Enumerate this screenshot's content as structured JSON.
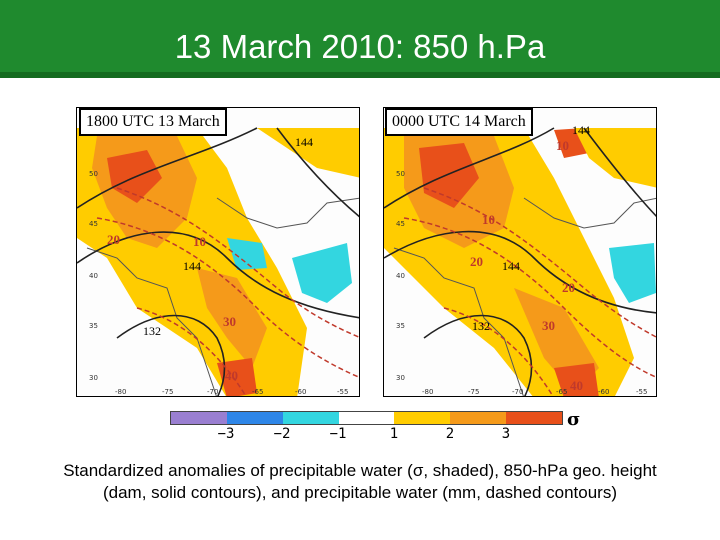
{
  "title": "13 March 2010: 850 h.Pa",
  "panels": [
    {
      "label": "1800 UTC 13 March",
      "contour_labels": {
        "h144a": "144",
        "h144b": "144",
        "h132": "132",
        "pw10": "10",
        "pw20": "20",
        "pw30": "30",
        "pw40": "40"
      },
      "lat_labels": [
        "50",
        "45",
        "40",
        "35",
        "30"
      ],
      "lon_labels": [
        "-80",
        "-75",
        "-70",
        "-65",
        "-60",
        "-55"
      ]
    },
    {
      "label": "0000 UTC 14 March",
      "contour_labels": {
        "h144a": "144",
        "h144b": "144",
        "h132": "132",
        "pw10a": "10",
        "pw10b": "10",
        "pw20a": "20",
        "pw20b": "20",
        "pw30": "30",
        "pw40": "40"
      },
      "lat_labels": [
        "50",
        "45",
        "40",
        "35",
        "30"
      ],
      "lon_labels": [
        "-80",
        "-75",
        "-70",
        "-65",
        "-60",
        "-55"
      ]
    }
  ],
  "colorbar": {
    "colors": [
      "#9a7fd1",
      "#2e86e8",
      "#33d6e0",
      "#ffffff",
      "#ffcc00",
      "#f59a1a",
      "#e8501a"
    ],
    "tick_labels": [
      "−3",
      "−2",
      "−1",
      "1",
      "2",
      "3"
    ],
    "unit_symbol": "σ"
  },
  "caption_line1": "Standardized anomalies of precipitable water (σ, shaded), 850-hPa geo. height",
  "caption_line2": "(dam, solid contours), and precipitable water (mm, dashed contours)"
}
